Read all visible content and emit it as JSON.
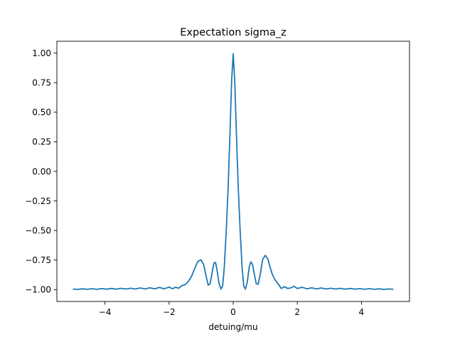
{
  "chart_data": {
    "type": "line",
    "title": "Expectation sigma_z",
    "xlabel": "detuing/mu",
    "ylabel": "",
    "xlim": [
      -5.5,
      5.5
    ],
    "ylim": [
      -1.1,
      1.1
    ],
    "x_ticks": [
      -4,
      -2,
      0,
      2,
      4
    ],
    "x_tick_labels": [
      "−4",
      "−2",
      "0",
      "2",
      "4"
    ],
    "y_ticks": [
      1.0,
      0.75,
      0.5,
      0.25,
      0.0,
      -0.25,
      -0.5,
      -0.75,
      -1.0
    ],
    "y_tick_labels": [
      "1.00",
      "0.75",
      "0.50",
      "0.25",
      "0.00",
      "−0.25",
      "−0.50",
      "−0.75",
      "−1.00"
    ],
    "grid": false,
    "series": [
      {
        "color": "#1f77b4",
        "points": [
          [
            -5.0,
            -0.995
          ],
          [
            -4.85,
            -0.998
          ],
          [
            -4.7,
            -0.993
          ],
          [
            -4.55,
            -0.997
          ],
          [
            -4.4,
            -0.992
          ],
          [
            -4.25,
            -0.997
          ],
          [
            -4.1,
            -0.991
          ],
          [
            -3.95,
            -0.996
          ],
          [
            -3.8,
            -0.99
          ],
          [
            -3.65,
            -0.996
          ],
          [
            -3.5,
            -0.989
          ],
          [
            -3.35,
            -0.995
          ],
          [
            -3.2,
            -0.988
          ],
          [
            -3.05,
            -0.995
          ],
          [
            -2.9,
            -0.986
          ],
          [
            -2.75,
            -0.994
          ],
          [
            -2.6,
            -0.984
          ],
          [
            -2.45,
            -0.993
          ],
          [
            -2.3,
            -0.981
          ],
          [
            -2.15,
            -0.993
          ],
          [
            -2.0,
            -0.978
          ],
          [
            -1.9,
            -0.992
          ],
          [
            -1.8,
            -0.98
          ],
          [
            -1.7,
            -0.988
          ],
          [
            -1.6,
            -0.966
          ],
          [
            -1.5,
            -0.958
          ],
          [
            -1.4,
            -0.93
          ],
          [
            -1.3,
            -0.888
          ],
          [
            -1.2,
            -0.82
          ],
          [
            -1.1,
            -0.76
          ],
          [
            -1.0,
            -0.748
          ],
          [
            -0.92,
            -0.79
          ],
          [
            -0.85,
            -0.88
          ],
          [
            -0.78,
            -0.962
          ],
          [
            -0.72,
            -0.95
          ],
          [
            -0.66,
            -0.86
          ],
          [
            -0.6,
            -0.775
          ],
          [
            -0.55,
            -0.77
          ],
          [
            -0.5,
            -0.84
          ],
          [
            -0.44,
            -0.95
          ],
          [
            -0.38,
            -0.995
          ],
          [
            -0.33,
            -0.97
          ],
          [
            -0.28,
            -0.82
          ],
          [
            -0.22,
            -0.52
          ],
          [
            -0.16,
            -0.15
          ],
          [
            -0.1,
            0.32
          ],
          [
            -0.05,
            0.76
          ],
          [
            0.0,
            0.995
          ],
          [
            0.05,
            0.76
          ],
          [
            0.1,
            0.32
          ],
          [
            0.16,
            -0.15
          ],
          [
            0.22,
            -0.52
          ],
          [
            0.28,
            -0.82
          ],
          [
            0.33,
            -0.97
          ],
          [
            0.38,
            -0.995
          ],
          [
            0.44,
            -0.935
          ],
          [
            0.5,
            -0.81
          ],
          [
            0.55,
            -0.765
          ],
          [
            0.6,
            -0.785
          ],
          [
            0.66,
            -0.87
          ],
          [
            0.72,
            -0.95
          ],
          [
            0.78,
            -0.955
          ],
          [
            0.85,
            -0.86
          ],
          [
            0.92,
            -0.745
          ],
          [
            1.0,
            -0.71
          ],
          [
            1.08,
            -0.74
          ],
          [
            1.15,
            -0.81
          ],
          [
            1.22,
            -0.87
          ],
          [
            1.3,
            -0.915
          ],
          [
            1.4,
            -0.95
          ],
          [
            1.5,
            -0.99
          ],
          [
            1.6,
            -0.975
          ],
          [
            1.7,
            -0.99
          ],
          [
            1.8,
            -0.985
          ],
          [
            1.9,
            -0.972
          ],
          [
            2.0,
            -0.99
          ],
          [
            2.15,
            -0.98
          ],
          [
            2.3,
            -0.993
          ],
          [
            2.45,
            -0.984
          ],
          [
            2.6,
            -0.994
          ],
          [
            2.75,
            -0.986
          ],
          [
            2.9,
            -0.995
          ],
          [
            3.05,
            -0.988
          ],
          [
            3.2,
            -0.995
          ],
          [
            3.35,
            -0.989
          ],
          [
            3.5,
            -0.996
          ],
          [
            3.65,
            -0.99
          ],
          [
            3.8,
            -0.996
          ],
          [
            3.95,
            -0.991
          ],
          [
            4.1,
            -0.997
          ],
          [
            4.25,
            -0.992
          ],
          [
            4.4,
            -0.997
          ],
          [
            4.55,
            -0.993
          ],
          [
            4.7,
            -0.998
          ],
          [
            4.85,
            -0.994
          ],
          [
            5.0,
            -0.997
          ]
        ]
      }
    ]
  }
}
